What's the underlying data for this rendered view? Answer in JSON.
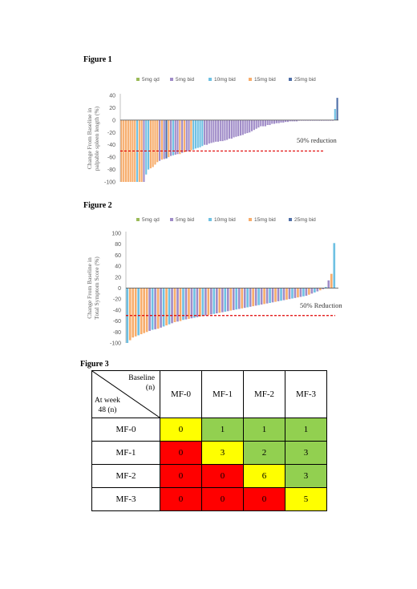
{
  "figure1": {
    "label": "Figure 1"
  },
  "figure2": {
    "label": "Figure 2"
  },
  "figure3": {
    "label": "Figure 3",
    "table": {
      "corner_baseline": "Baseline\n(n)",
      "corner_atweek": "At week\n48 (n)",
      "columns": [
        "MF-0",
        "MF-1",
        "MF-2",
        "MF-3"
      ],
      "rows": [
        {
          "label": "MF-0",
          "cells": [
            "0",
            "1",
            "1",
            "1"
          ]
        },
        {
          "label": "MF-1",
          "cells": [
            "0",
            "3",
            "2",
            "3"
          ]
        },
        {
          "label": "MF-2",
          "cells": [
            "0",
            "0",
            "6",
            "3"
          ]
        },
        {
          "label": "MF-3",
          "cells": [
            "0",
            "0",
            "0",
            "5"
          ]
        }
      ],
      "cell_colors": [
        [
          "#ffff00",
          "#92d050",
          "#92d050",
          "#92d050"
        ],
        [
          "#ff0000",
          "#ffff00",
          "#92d050",
          "#92d050"
        ],
        [
          "#ff0000",
          "#ff0000",
          "#ffff00",
          "#92d050"
        ],
        [
          "#ff0000",
          "#ff0000",
          "#ff0000",
          "#ffff00"
        ]
      ]
    }
  },
  "chart_data": [
    {
      "type": "bar",
      "ylabel": "Change From Baseline in palpable spleen length (%)",
      "ylim": [
        -100,
        40
      ],
      "yticks": [
        40,
        20,
        0,
        -20,
        -40,
        -60,
        -80,
        -100
      ],
      "legend": [
        {
          "name": "5mg qd",
          "color": "#9bbb59"
        },
        {
          "name": "5mg bid",
          "color": "#a08cc8"
        },
        {
          "name": "10mg bid",
          "color": "#6fc1e3"
        },
        {
          "name": "15mg bid",
          "color": "#f7ad6c"
        },
        {
          "name": "25mg bid",
          "color": "#4f6fa8"
        }
      ],
      "legend_position": "top",
      "reference_line": {
        "y": -50,
        "color": "#e00000",
        "label": "50% reduction"
      },
      "series_by_bar": [
        "15mg bid",
        "15mg bid",
        "15mg bid",
        "15mg bid",
        "15mg bid",
        "15mg bid",
        "15mg bid",
        "10mg bid",
        "15mg bid",
        "15mg bid",
        "5mg bid",
        "10mg bid",
        "10mg bid",
        "15mg bid",
        "15mg bid",
        "15mg bid",
        "15mg bid",
        "5mg bid",
        "15mg bid",
        "5mg bid",
        "25mg bid",
        "15mg bid",
        "5mg bid",
        "10mg bid",
        "5mg bid",
        "5mg bid",
        "15mg bid",
        "5mg bid",
        "15mg bid",
        "5mg bid",
        "5mg bid",
        "15mg bid",
        "10mg bid",
        "10mg bid",
        "10mg bid",
        "10mg bid",
        "10mg bid",
        "5mg bid",
        "5mg bid",
        "5mg bid",
        "5mg bid",
        "5mg bid",
        "5mg bid",
        "5mg bid",
        "5mg bid",
        "5mg bid",
        "5mg bid",
        "5mg bid",
        "5mg bid",
        "5mg bid",
        "5mg bid",
        "5mg bid",
        "5mg bid",
        "5mg bid",
        "5mg bid",
        "5mg bid",
        "5mg bid",
        "5mg bid",
        "5mg bid",
        "5mg bid",
        "5mg bid",
        "5mg bid",
        "5mg bid",
        "5mg bid",
        "5mg bid",
        "5mg bid",
        "5mg bid",
        "5mg bid",
        "5mg bid",
        "5mg bid",
        "5mg bid",
        "5mg bid",
        "5mg bid",
        "5mg bid",
        "5mg bid",
        "5mg bid",
        "5mg bid",
        "5mg bid",
        "5mg bid",
        "5mg bid",
        "5mg bid",
        "5mg bid",
        "5mg bid",
        "5mg bid",
        "5mg bid",
        "5mg bid",
        "5mg bid",
        "5mg bid",
        "5mg bid",
        "5mg bid",
        "5mg bid",
        "5mg bid",
        "5mg bid",
        "5mg bid",
        "5mg bid",
        "10mg bid",
        "25mg bid"
      ],
      "values": [
        -100,
        -100,
        -100,
        -100,
        -100,
        -100,
        -100,
        -100,
        -100,
        -100,
        -100,
        -88,
        -80,
        -78,
        -76,
        -72,
        -68,
        -66,
        -64,
        -63,
        -62,
        -60,
        -58,
        -57,
        -56,
        -55,
        -55,
        -53,
        -52,
        -51,
        -50,
        -49,
        -48,
        -46,
        -45,
        -44,
        -42,
        -40,
        -40,
        -38,
        -37,
        -36,
        -35,
        -35,
        -34,
        -34,
        -33,
        -32,
        -30,
        -30,
        -28,
        -27,
        -26,
        -25,
        -24,
        -22,
        -21,
        -20,
        -18,
        -16,
        -14,
        -12,
        -10,
        -10,
        -10,
        -8,
        -8,
        -6,
        -6,
        -5,
        -5,
        -4,
        -4,
        -3,
        -3,
        -2,
        -2,
        -2,
        -2,
        -1,
        -1,
        -1,
        -1,
        -1,
        -1,
        -1,
        -1,
        -1,
        -1,
        -1,
        -1,
        -1,
        -1,
        -1,
        -1,
        18,
        36
      ]
    },
    {
      "type": "bar",
      "ylabel": "Change From Baseline in Total Symptom Score (%)",
      "ylim": [
        -100,
        100
      ],
      "yticks": [
        100,
        80,
        60,
        40,
        20,
        0,
        -20,
        -40,
        -60,
        -80,
        -100
      ],
      "legend": [
        {
          "name": "5mg qd",
          "color": "#9bbb59"
        },
        {
          "name": "5mg bid",
          "color": "#a08cc8"
        },
        {
          "name": "10mg bid",
          "color": "#6fc1e3"
        },
        {
          "name": "15mg bid",
          "color": "#f7ad6c"
        },
        {
          "name": "25mg bid",
          "color": "#4f6fa8"
        }
      ],
      "legend_position": "top",
      "reference_line": {
        "y": -50,
        "color": "#e00000",
        "label": "50% Reduction"
      },
      "series_by_bar": [
        "10mg bid",
        "15mg bid",
        "15mg bid",
        "15mg bid",
        "10mg bid",
        "15mg bid",
        "15mg bid",
        "15mg bid",
        "5mg bid",
        "10mg bid",
        "5mg bid",
        "15mg bid",
        "5mg bid",
        "10mg bid",
        "15mg bid",
        "10mg bid",
        "5mg bid",
        "15mg bid",
        "5mg bid",
        "15mg bid",
        "10mg bid",
        "5mg bid",
        "15mg bid",
        "5mg bid",
        "10mg bid",
        "5mg bid",
        "15mg bid",
        "10mg bid",
        "5mg bid",
        "15mg bid",
        "5mg bid",
        "10mg bid",
        "5mg bid",
        "15mg bid",
        "5mg bid",
        "10mg bid",
        "5mg bid",
        "15mg bid",
        "5mg bid",
        "10mg bid",
        "5mg bid",
        "15mg bid",
        "5mg bid",
        "10mg bid",
        "5mg bid",
        "15mg bid",
        "5mg bid",
        "10mg bid",
        "5mg bid",
        "15mg bid",
        "5mg bid",
        "10mg bid",
        "5mg bid",
        "15mg bid",
        "5mg bid",
        "10mg bid",
        "5mg bid",
        "15mg bid",
        "5mg bid",
        "10mg bid",
        "5mg bid",
        "15mg bid",
        "5mg bid",
        "10mg bid",
        "5mg bid",
        "15mg bid",
        "5mg bid",
        "10mg bid",
        "5mg bid",
        "15mg bid",
        "5mg bid",
        "10mg bid",
        "5mg bid",
        "15mg bid",
        "10mg bid",
        "5mg bid"
      ],
      "values": [
        -100,
        -95,
        -90,
        -88,
        -86,
        -84,
        -82,
        -80,
        -78,
        -76,
        -75,
        -74,
        -72,
        -70,
        -68,
        -66,
        -64,
        -62,
        -61,
        -60,
        -58,
        -57,
        -56,
        -55,
        -54,
        -53,
        -52,
        -51,
        -50,
        -49,
        -48,
        -47,
        -46,
        -45,
        -44,
        -43,
        -42,
        -41,
        -40,
        -39,
        -38,
        -37,
        -36,
        -35,
        -34,
        -33,
        -32,
        -31,
        -30,
        -29,
        -28,
        -27,
        -26,
        -25,
        -24,
        -23,
        -22,
        -21,
        -20,
        -19,
        -18,
        -17,
        -16,
        -15,
        -14,
        -12,
        -10,
        -8,
        -6,
        -4,
        -2,
        2,
        14,
        26,
        82,
        0
      ]
    }
  ]
}
